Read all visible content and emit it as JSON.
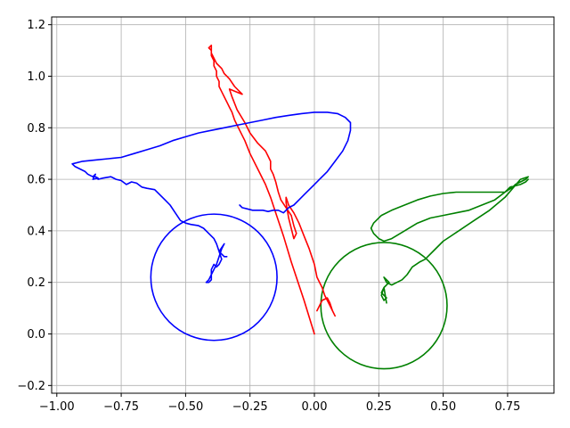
{
  "chart_data": {
    "type": "line",
    "title": "",
    "xlabel": "",
    "ylabel": "",
    "xlim": [
      -1.02,
      0.93
    ],
    "ylim": [
      -0.23,
      1.23
    ],
    "grid": true,
    "x_ticks": [
      -1.0,
      -0.75,
      -0.5,
      -0.25,
      0.0,
      0.25,
      0.5,
      0.75
    ],
    "x_tick_labels": [
      "−1.00",
      "−0.75",
      "−0.50",
      "−0.25",
      "0.00",
      "0.25",
      "0.50",
      "0.75"
    ],
    "y_ticks": [
      -0.2,
      0.0,
      0.2,
      0.4,
      0.6,
      0.8,
      1.0,
      1.2
    ],
    "y_tick_labels": [
      "−0.2",
      "0.0",
      "0.2",
      "0.4",
      "0.6",
      "0.8",
      "1.0",
      "1.2"
    ],
    "series": [
      {
        "color": "#ff0000",
        "x": [
          0.0,
          -0.04,
          -0.09,
          -0.12,
          -0.15,
          -0.17,
          -0.19,
          -0.22,
          -0.25,
          -0.27,
          -0.29,
          -0.31,
          -0.32,
          -0.33,
          -0.34,
          -0.35,
          -0.36,
          -0.37,
          -0.37,
          -0.38,
          -0.38,
          -0.39,
          -0.39,
          -0.4,
          -0.4,
          -0.41,
          -0.4,
          -0.4,
          -0.39,
          -0.38,
          -0.36,
          -0.35,
          -0.33,
          -0.31,
          -0.28,
          -0.33,
          -0.32,
          -0.3,
          -0.27,
          -0.25,
          -0.22,
          -0.19,
          -0.18,
          -0.17,
          -0.17,
          -0.16,
          -0.15,
          -0.14,
          -0.13,
          -0.11,
          -0.09,
          -0.08,
          -0.07,
          -0.08,
          -0.1,
          -0.11,
          -0.11,
          -0.1,
          -0.08,
          -0.06,
          -0.04,
          -0.02,
          0.0,
          0.01,
          0.03,
          0.04,
          0.05,
          0.06,
          0.07,
          0.08,
          0.07,
          0.06,
          0.05,
          0.03,
          0.02,
          0.01
        ],
        "y": [
          0.0,
          0.13,
          0.28,
          0.38,
          0.47,
          0.53,
          0.58,
          0.64,
          0.7,
          0.75,
          0.79,
          0.83,
          0.86,
          0.88,
          0.9,
          0.92,
          0.94,
          0.96,
          0.98,
          1.0,
          1.02,
          1.04,
          1.06,
          1.08,
          1.1,
          1.11,
          1.12,
          1.09,
          1.07,
          1.05,
          1.03,
          1.01,
          0.99,
          0.96,
          0.93,
          0.95,
          0.92,
          0.87,
          0.82,
          0.78,
          0.74,
          0.71,
          0.69,
          0.67,
          0.64,
          0.62,
          0.59,
          0.55,
          0.52,
          0.49,
          0.46,
          0.42,
          0.39,
          0.37,
          0.45,
          0.51,
          0.53,
          0.5,
          0.47,
          0.43,
          0.38,
          0.33,
          0.27,
          0.22,
          0.18,
          0.15,
          0.13,
          0.11,
          0.09,
          0.07,
          0.09,
          0.12,
          0.14,
          0.13,
          0.11,
          0.09
        ]
      },
      {
        "color": "#0000ff",
        "x": [
          -0.29,
          -0.28,
          -0.26,
          -0.24,
          -0.22,
          -0.2,
          -0.18,
          -0.16,
          -0.14,
          -0.12,
          -0.1,
          -0.08,
          -0.06,
          -0.04,
          -0.02,
          0.0,
          0.02,
          0.05,
          0.08,
          0.11,
          0.13,
          0.14,
          0.14,
          0.12,
          0.09,
          0.05,
          0.0,
          -0.05,
          -0.1,
          -0.15,
          -0.2,
          -0.25,
          -0.3,
          -0.35,
          -0.4,
          -0.45,
          -0.5,
          -0.55,
          -0.6,
          -0.65,
          -0.7,
          -0.75,
          -0.8,
          -0.85,
          -0.9,
          -0.94,
          -0.93,
          -0.91,
          -0.89,
          -0.88,
          -0.87,
          -0.86,
          -0.85,
          -0.86,
          -0.84,
          -0.85,
          -0.84,
          -0.82,
          -0.79,
          -0.77,
          -0.75,
          -0.73,
          -0.71,
          -0.69,
          -0.67,
          -0.65,
          -0.62,
          -0.6,
          -0.58,
          -0.56,
          -0.54,
          -0.52,
          -0.5,
          -0.48,
          -0.45,
          -0.43,
          -0.41,
          -0.39,
          -0.38,
          -0.37,
          -0.36,
          -0.37,
          -0.38,
          -0.39,
          -0.4,
          -0.4,
          -0.41,
          -0.42,
          -0.41,
          -0.4,
          -0.39,
          -0.38,
          -0.37,
          -0.36,
          -0.35,
          -0.37,
          -0.36,
          -0.35,
          -0.34
        ],
        "y": [
          0.5,
          0.49,
          0.485,
          0.48,
          0.48,
          0.48,
          0.475,
          0.48,
          0.48,
          0.47,
          0.49,
          0.5,
          0.52,
          0.54,
          0.56,
          0.58,
          0.6,
          0.63,
          0.67,
          0.71,
          0.75,
          0.79,
          0.82,
          0.84,
          0.855,
          0.86,
          0.86,
          0.855,
          0.848,
          0.84,
          0.83,
          0.82,
          0.81,
          0.8,
          0.79,
          0.78,
          0.765,
          0.75,
          0.73,
          0.715,
          0.7,
          0.685,
          0.68,
          0.675,
          0.67,
          0.66,
          0.65,
          0.64,
          0.63,
          0.62,
          0.615,
          0.61,
          0.62,
          0.6,
          0.605,
          0.61,
          0.6,
          0.605,
          0.61,
          0.6,
          0.595,
          0.58,
          0.59,
          0.585,
          0.57,
          0.565,
          0.56,
          0.54,
          0.52,
          0.5,
          0.47,
          0.44,
          0.43,
          0.425,
          0.42,
          0.41,
          0.39,
          0.37,
          0.35,
          0.32,
          0.29,
          0.27,
          0.26,
          0.27,
          0.25,
          0.21,
          0.2,
          0.2,
          0.21,
          0.23,
          0.25,
          0.27,
          0.3,
          0.33,
          0.35,
          0.32,
          0.31,
          0.3,
          0.3
        ]
      },
      {
        "color": "#008000",
        "x": [
          0.83,
          0.82,
          0.8,
          0.78,
          0.76,
          0.74,
          0.7,
          0.65,
          0.6,
          0.55,
          0.5,
          0.45,
          0.4,
          0.35,
          0.3,
          0.26,
          0.23,
          0.22,
          0.23,
          0.25,
          0.27,
          0.3,
          0.35,
          0.4,
          0.45,
          0.5,
          0.55,
          0.6,
          0.65,
          0.7,
          0.74,
          0.77,
          0.78,
          0.8,
          0.82,
          0.83,
          0.8,
          0.74,
          0.68,
          0.62,
          0.56,
          0.5,
          0.46,
          0.44,
          0.43,
          0.41,
          0.38,
          0.36,
          0.34,
          0.32,
          0.3,
          0.28,
          0.27,
          0.28,
          0.29,
          0.27,
          0.26,
          0.27,
          0.28,
          0.27,
          0.26,
          0.27,
          0.28
        ],
        "y": [
          0.6,
          0.59,
          0.58,
          0.575,
          0.57,
          0.55,
          0.55,
          0.55,
          0.55,
          0.55,
          0.545,
          0.535,
          0.52,
          0.5,
          0.48,
          0.46,
          0.43,
          0.41,
          0.39,
          0.37,
          0.36,
          0.37,
          0.4,
          0.43,
          0.45,
          0.46,
          0.47,
          0.48,
          0.5,
          0.52,
          0.55,
          0.57,
          0.58,
          0.59,
          0.6,
          0.61,
          0.6,
          0.53,
          0.48,
          0.44,
          0.4,
          0.36,
          0.32,
          0.3,
          0.29,
          0.28,
          0.26,
          0.23,
          0.21,
          0.2,
          0.19,
          0.2,
          0.22,
          0.21,
          0.2,
          0.18,
          0.16,
          0.15,
          0.14,
          0.13,
          0.15,
          0.18,
          0.12
        ]
      }
    ],
    "circles": [
      {
        "color": "#0000ff",
        "cx": -0.39,
        "cy": 0.22,
        "r": 0.245
      },
      {
        "color": "#008000",
        "cx": 0.27,
        "cy": 0.11,
        "r": 0.245
      }
    ]
  }
}
